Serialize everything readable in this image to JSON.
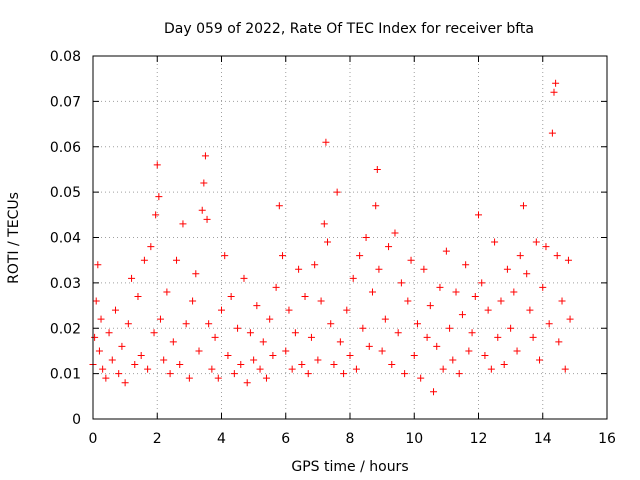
{
  "chart_data": {
    "type": "scatter",
    "title": "Day 059 of 2022, Rate Of TEC Index for receiver bfta",
    "xlabel": "GPS time / hours",
    "ylabel": "ROTI / TECUs",
    "xlim": [
      0,
      16
    ],
    "ylim": [
      0,
      0.08
    ],
    "xticks": [
      0,
      2,
      4,
      6,
      8,
      10,
      12,
      14,
      16
    ],
    "xtick_labels": [
      "0",
      "2",
      "4",
      "6",
      "8",
      "10",
      "12",
      "14",
      "16"
    ],
    "yticks": [
      0,
      0.01,
      0.02,
      0.03,
      0.04,
      0.05,
      0.06,
      0.07,
      0.08
    ],
    "ytick_labels": [
      "0",
      "0.01",
      "0.02",
      "0.03",
      "0.04",
      "0.05",
      "0.06",
      "0.07",
      "0.08"
    ],
    "grid": true,
    "marker": "plus",
    "color": "#ff0000",
    "series": [
      {
        "name": "ROTI",
        "x": [
          0.0,
          0.05,
          0.1,
          0.15,
          0.2,
          0.25,
          0.3,
          0.4,
          0.5,
          0.6,
          0.7,
          0.8,
          0.9,
          1.0,
          1.1,
          1.2,
          1.3,
          1.4,
          1.5,
          1.6,
          1.7,
          1.8,
          1.9,
          1.95,
          2.0,
          2.05,
          2.1,
          2.2,
          2.3,
          2.4,
          2.5,
          2.6,
          2.7,
          2.8,
          2.9,
          3.0,
          3.1,
          3.2,
          3.3,
          3.4,
          3.45,
          3.5,
          3.55,
          3.6,
          3.7,
          3.8,
          3.9,
          4.0,
          4.1,
          4.2,
          4.3,
          4.4,
          4.5,
          4.6,
          4.7,
          4.8,
          4.9,
          5.0,
          5.1,
          5.2,
          5.3,
          5.4,
          5.5,
          5.6,
          5.7,
          5.8,
          5.9,
          6.0,
          6.1,
          6.2,
          6.3,
          6.4,
          6.5,
          6.6,
          6.7,
          6.8,
          6.9,
          7.0,
          7.1,
          7.2,
          7.25,
          7.3,
          7.4,
          7.5,
          7.6,
          7.7,
          7.8,
          7.9,
          8.0,
          8.1,
          8.2,
          8.3,
          8.4,
          8.5,
          8.6,
          8.7,
          8.8,
          8.85,
          8.9,
          9.0,
          9.1,
          9.2,
          9.3,
          9.4,
          9.5,
          9.6,
          9.7,
          9.8,
          9.9,
          10.0,
          10.1,
          10.2,
          10.3,
          10.4,
          10.5,
          10.6,
          10.7,
          10.8,
          10.9,
          11.0,
          11.1,
          11.2,
          11.3,
          11.4,
          11.5,
          11.6,
          11.7,
          11.8,
          11.9,
          12.0,
          12.1,
          12.2,
          12.3,
          12.4,
          12.5,
          12.6,
          12.7,
          12.8,
          12.9,
          13.0,
          13.1,
          13.2,
          13.3,
          13.4,
          13.5,
          13.6,
          13.7,
          13.8,
          13.9,
          14.0,
          14.1,
          14.2,
          14.3,
          14.35,
          14.4,
          14.45,
          14.5,
          14.6,
          14.7,
          14.8,
          14.85
        ],
        "y": [
          0.012,
          0.018,
          0.026,
          0.034,
          0.015,
          0.022,
          0.011,
          0.009,
          0.019,
          0.013,
          0.024,
          0.01,
          0.016,
          0.008,
          0.021,
          0.031,
          0.012,
          0.027,
          0.014,
          0.035,
          0.011,
          0.038,
          0.019,
          0.045,
          0.056,
          0.049,
          0.022,
          0.013,
          0.028,
          0.01,
          0.017,
          0.035,
          0.012,
          0.043,
          0.021,
          0.009,
          0.026,
          0.032,
          0.015,
          0.046,
          0.052,
          0.058,
          0.044,
          0.021,
          0.011,
          0.018,
          0.009,
          0.024,
          0.036,
          0.014,
          0.027,
          0.01,
          0.02,
          0.012,
          0.031,
          0.008,
          0.019,
          0.013,
          0.025,
          0.011,
          0.017,
          0.009,
          0.022,
          0.014,
          0.029,
          0.047,
          0.036,
          0.015,
          0.024,
          0.011,
          0.019,
          0.033,
          0.012,
          0.027,
          0.01,
          0.018,
          0.034,
          0.013,
          0.026,
          0.043,
          0.061,
          0.039,
          0.021,
          0.012,
          0.05,
          0.017,
          0.01,
          0.024,
          0.014,
          0.031,
          0.011,
          0.036,
          0.02,
          0.04,
          0.016,
          0.028,
          0.047,
          0.055,
          0.033,
          0.015,
          0.022,
          0.038,
          0.012,
          0.041,
          0.019,
          0.03,
          0.01,
          0.026,
          0.035,
          0.014,
          0.021,
          0.009,
          0.033,
          0.018,
          0.025,
          0.006,
          0.016,
          0.029,
          0.011,
          0.037,
          0.02,
          0.013,
          0.028,
          0.01,
          0.023,
          0.034,
          0.015,
          0.019,
          0.027,
          0.045,
          0.03,
          0.014,
          0.024,
          0.011,
          0.039,
          0.018,
          0.026,
          0.012,
          0.033,
          0.02,
          0.028,
          0.015,
          0.036,
          0.047,
          0.032,
          0.024,
          0.018,
          0.039,
          0.013,
          0.029,
          0.038,
          0.021,
          0.063,
          0.072,
          0.074,
          0.036,
          0.017,
          0.026,
          0.011,
          0.035,
          0.022
        ]
      }
    ]
  }
}
